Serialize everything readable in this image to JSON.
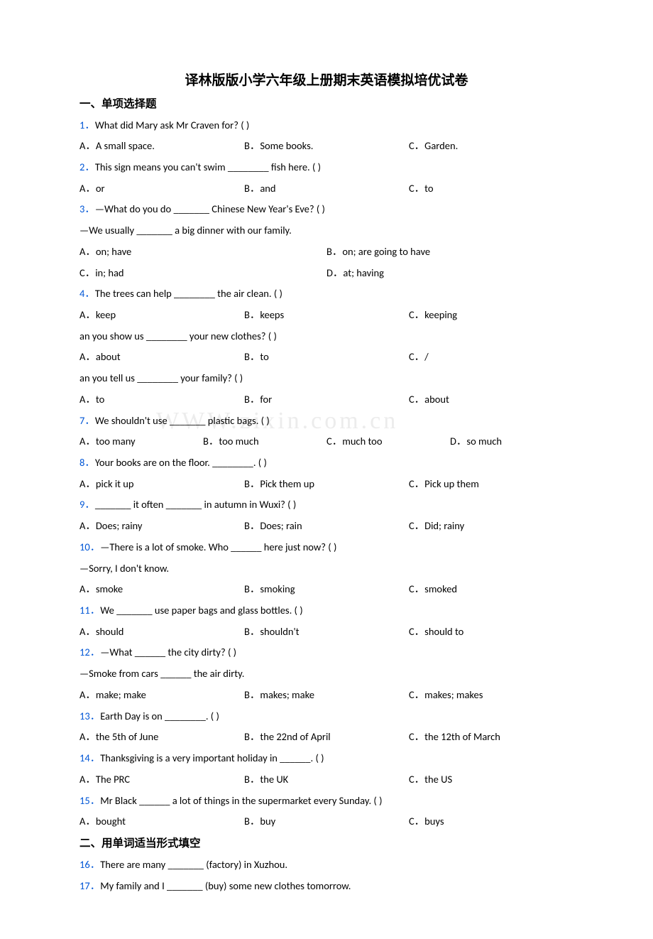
{
  "page_title": "译林版版小学六年级上册期末英语模拟培优试卷",
  "section1_title": "一、单项选择题",
  "section2_title": "二、用单词适当形式填空",
  "watermark_text": "WWW.zixin.com.cn",
  "q1": {
    "num": "1．",
    "text": "What did Mary ask Mr Craven for? (     )",
    "a": "A．A small space.",
    "b": "B．Some books.",
    "c": "C．Garden."
  },
  "q2": {
    "num": "2．",
    "text": "This sign means you can't swim ________ fish here. (     )",
    "a": "A．or",
    "b": "B．and",
    "c": "C．to"
  },
  "q3": {
    "num": "3．",
    "text": "—What do you do _______ Chinese New Year's Eve? (      )",
    "cont": "—We usually _______ a big dinner with our family.",
    "a": "A．on; have",
    "b": "B．on; are going to have",
    "c": "C．in; had",
    "d": "D．at; having"
  },
  "q4": {
    "num": "4．",
    "text": "The trees can help ________ the air clean. (     )",
    "a": "A．keep",
    "b": "B．keeps",
    "c": "C．keeping"
  },
  "q5": {
    "text": "an you show us ________ your new clothes? (      )",
    "a": "A．about",
    "b": "B．to",
    "c": "C．/"
  },
  "q6": {
    "text": "an you tell us ________ your family? (     )",
    "a": "A．to",
    "b": "B．for",
    "c": "C．about"
  },
  "q7": {
    "num": "7．",
    "text": "We shouldn't use _______ plastic bags. (    )",
    "a": "A．too many",
    "b": "B．too much",
    "c": "C．much too",
    "d": "D．so much"
  },
  "q8": {
    "num": "8．",
    "text": "Your books are on the floor. ________. (       )",
    "a": "A．pick it up",
    "b": "B．Pick them up",
    "c": "C．Pick up them"
  },
  "q9": {
    "num": "9．",
    "text": "_______ it often _______ in autumn in Wuxi? (     )",
    "a": "A．Does; rainy",
    "b": "B．Does; rain",
    "c": "C．Did; rainy"
  },
  "q10": {
    "num": "10．",
    "text": "—There is a lot of smoke. Who ______ here just now? (   )",
    "cont": "—Sorry, I don't know.",
    "a": "A．smoke",
    "b": "B．smoking",
    "c": "C．smoked"
  },
  "q11": {
    "num": "11．",
    "text": "We _______ use paper bags and glass bottles. (    )",
    "a": "A．should",
    "b": "B．shouldn't",
    "c": "C．should to"
  },
  "q12": {
    "num": "12．",
    "text": "—What ______ the city dirty? (     )",
    "cont": "—Smoke from cars ______ the air dirty.",
    "a": "A．make; make",
    "b": "B．makes; make",
    "c": "C．makes; makes"
  },
  "q13": {
    "num": "13．",
    "text": "Earth Day is on ________. (    )",
    "a": "A．the 5th of June",
    "b": "B．the 22nd of April",
    "c": "C．the 12th of March"
  },
  "q14": {
    "num": "14．",
    "text": "Thanksgiving is a very important holiday in ______. (     )",
    "a": "A．The PRC",
    "b": "B．the UK",
    "c": "C．the US"
  },
  "q15": {
    "num": "15．",
    "text": "Mr Black ______ a lot of things in the supermarket every Sunday. (     )",
    "a": "A．bought",
    "b": "B．buy",
    "c": "C．buys"
  },
  "q16": {
    "num": "16．",
    "text": "There are many _______ (factory) in Xuzhou."
  },
  "q17": {
    "num": "17．",
    "text": "My family and I _______ (buy) some new clothes tomorrow."
  }
}
